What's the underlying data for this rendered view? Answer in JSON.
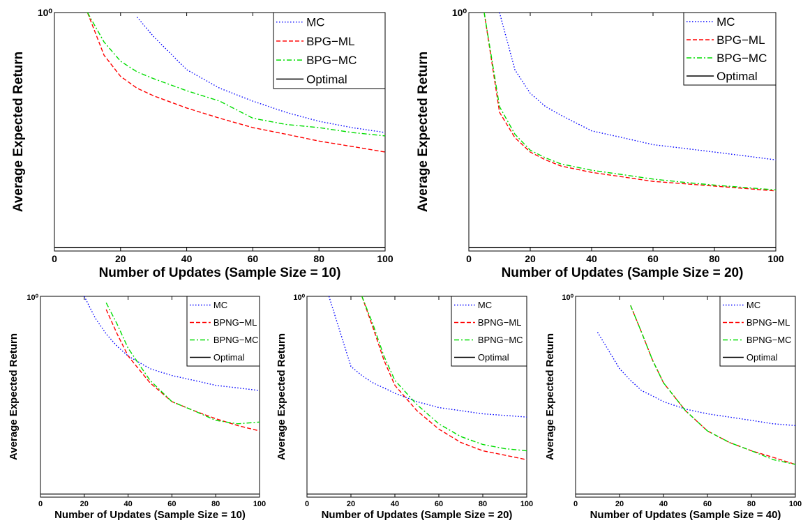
{
  "chart_data": [
    {
      "type": "line",
      "xlabel": "Number of Updates (Sample Size = 10)",
      "ylabel": "Average Expected Return",
      "x": [
        0,
        5,
        10,
        15,
        20,
        25,
        30,
        40,
        50,
        60,
        70,
        80,
        90,
        100
      ],
      "xlim": [
        0,
        100
      ],
      "xticks": [
        0,
        20,
        40,
        60,
        80,
        100
      ],
      "ylim": [
        0.2,
        1
      ],
      "yticks": [
        {
          "value": 1,
          "label": "10⁰"
        }
      ],
      "log_y": true,
      "legend": "upper right",
      "series": [
        {
          "name": "MC",
          "color": "#0000ff",
          "style": "dotted",
          "values": [
            null,
            null,
            null,
            null,
            null,
            0.97,
            0.85,
            0.68,
            0.6,
            0.55,
            0.51,
            0.48,
            0.46,
            0.445
          ]
        },
        {
          "name": "BPG−ML",
          "color": "#ff0000",
          "style": "dashed",
          "values": [
            null,
            null,
            1,
            0.75,
            0.65,
            0.6,
            0.57,
            0.525,
            0.49,
            0.46,
            0.44,
            0.42,
            0.405,
            0.39
          ]
        },
        {
          "name": "BPG−MC",
          "color": "#00dd00",
          "style": "dashdot",
          "values": [
            null,
            null,
            1,
            0.82,
            0.72,
            0.67,
            0.64,
            0.59,
            0.55,
            0.49,
            0.47,
            0.46,
            0.445,
            0.435
          ]
        },
        {
          "name": "Optimal",
          "color": "#000000",
          "style": "solid",
          "values": [
            0.205,
            0.205,
            0.205,
            0.205,
            0.205,
            0.205,
            0.205,
            0.205,
            0.205,
            0.205,
            0.205,
            0.205,
            0.205,
            0.205
          ]
        }
      ]
    },
    {
      "type": "line",
      "xlabel": "Number of Updates (Sample Size = 20)",
      "ylabel": "Average Expected Return",
      "x": [
        0,
        5,
        10,
        15,
        20,
        25,
        30,
        40,
        50,
        60,
        70,
        80,
        90,
        100
      ],
      "xlim": [
        0,
        100
      ],
      "xticks": [
        0,
        20,
        40,
        60,
        80,
        100
      ],
      "ylim": [
        0.2,
        1
      ],
      "yticks": [
        {
          "value": 1,
          "label": "10⁰"
        }
      ],
      "log_y": true,
      "legend": "upper right",
      "series": [
        {
          "name": "MC",
          "color": "#0000ff",
          "style": "dotted",
          "values": [
            null,
            null,
            1,
            0.68,
            0.58,
            0.53,
            0.5,
            0.45,
            0.43,
            0.41,
            0.4,
            0.39,
            0.38,
            0.37
          ]
        },
        {
          "name": "BPG−ML",
          "color": "#ff0000",
          "style": "dashed",
          "values": [
            null,
            1,
            0.51,
            0.43,
            0.39,
            0.37,
            0.355,
            0.34,
            0.33,
            0.32,
            0.315,
            0.31,
            0.305,
            0.3
          ]
        },
        {
          "name": "BPG−MC",
          "color": "#00dd00",
          "style": "dashdot",
          "values": [
            null,
            1,
            0.53,
            0.44,
            0.395,
            0.375,
            0.36,
            0.345,
            0.335,
            0.325,
            0.318,
            0.312,
            0.307,
            0.302
          ]
        },
        {
          "name": "Optimal",
          "color": "#000000",
          "style": "solid",
          "values": [
            0.205,
            0.205,
            0.205,
            0.205,
            0.205,
            0.205,
            0.205,
            0.205,
            0.205,
            0.205,
            0.205,
            0.205,
            0.205,
            0.205
          ]
        }
      ]
    },
    {
      "type": "line",
      "xlabel": "Number of Updates (Sample Size = 10)",
      "ylabel": "Average Expected Return",
      "x": [
        0,
        10,
        20,
        25,
        30,
        35,
        40,
        50,
        60,
        70,
        80,
        90,
        100
      ],
      "xlim": [
        0,
        100
      ],
      "xticks": [
        0,
        20,
        40,
        60,
        80,
        100
      ],
      "ylim": [
        0.2,
        1
      ],
      "yticks": [
        {
          "value": 1,
          "label": "10⁰"
        }
      ],
      "log_y": true,
      "legend": "upper right",
      "series": [
        {
          "name": "MC",
          "color": "#0000ff",
          "style": "dotted",
          "values": [
            null,
            null,
            1,
            0.84,
            0.74,
            0.67,
            0.62,
            0.56,
            0.53,
            0.51,
            0.49,
            0.48,
            0.47
          ]
        },
        {
          "name": "BPNG−ML",
          "color": "#ff0000",
          "style": "dashed",
          "values": [
            null,
            null,
            null,
            null,
            0.9,
            0.74,
            0.62,
            0.5,
            0.43,
            0.4,
            0.375,
            0.355,
            0.34
          ]
        },
        {
          "name": "BPNG−MC",
          "color": "#00dd00",
          "style": "dashdot",
          "values": [
            null,
            null,
            null,
            null,
            0.95,
            0.8,
            0.66,
            0.51,
            0.43,
            0.4,
            0.37,
            0.36,
            0.365
          ]
        },
        {
          "name": "Optimal",
          "color": "#000000",
          "style": "solid",
          "values": [
            0.205,
            0.205,
            0.205,
            0.205,
            0.205,
            0.205,
            0.205,
            0.205,
            0.205,
            0.205,
            0.205,
            0.205,
            0.205
          ]
        }
      ]
    },
    {
      "type": "line",
      "xlabel": "Number of Updates (Sample Size = 20)",
      "ylabel": "Average Expected Return",
      "x": [
        0,
        10,
        20,
        25,
        30,
        35,
        40,
        50,
        60,
        70,
        80,
        90,
        100
      ],
      "xlim": [
        0,
        100
      ],
      "xticks": [
        0,
        20,
        40,
        60,
        80,
        100
      ],
      "ylim": [
        0.2,
        1
      ],
      "yticks": [
        {
          "value": 1,
          "label": "10⁰"
        }
      ],
      "log_y": true,
      "legend": "upper right",
      "series": [
        {
          "name": "MC",
          "color": "#0000ff",
          "style": "dotted",
          "values": [
            null,
            1,
            0.57,
            0.53,
            0.5,
            0.48,
            0.46,
            0.43,
            0.41,
            0.4,
            0.39,
            0.385,
            0.38
          ]
        },
        {
          "name": "BPNG−ML",
          "color": "#ff0000",
          "style": "dashed",
          "values": [
            null,
            null,
            null,
            1,
            0.78,
            0.6,
            0.49,
            0.4,
            0.345,
            0.31,
            0.29,
            0.28,
            0.27
          ]
        },
        {
          "name": "BPNG−MC",
          "color": "#00dd00",
          "style": "dashdot",
          "values": [
            null,
            null,
            null,
            1,
            0.8,
            0.62,
            0.51,
            0.42,
            0.36,
            0.325,
            0.305,
            0.295,
            0.29
          ]
        },
        {
          "name": "Optimal",
          "color": "#000000",
          "style": "solid",
          "values": [
            0.205,
            0.205,
            0.205,
            0.205,
            0.205,
            0.205,
            0.205,
            0.205,
            0.205,
            0.205,
            0.205,
            0.205,
            0.205
          ]
        }
      ]
    },
    {
      "type": "line",
      "xlabel": "Number of Updates (Sample Size = 40)",
      "ylabel": "Average Expected Return",
      "x": [
        0,
        10,
        20,
        25,
        30,
        35,
        40,
        50,
        60,
        70,
        80,
        90,
        100
      ],
      "xlim": [
        0,
        100
      ],
      "xticks": [
        0,
        20,
        40,
        60,
        80,
        100
      ],
      "ylim": [
        0.2,
        1
      ],
      "yticks": [
        {
          "value": 1,
          "label": "10⁰"
        }
      ],
      "log_y": true,
      "legend": "upper right",
      "series": [
        {
          "name": "MC",
          "color": "#0000ff",
          "style": "dotted",
          "values": [
            null,
            0.75,
            0.56,
            0.51,
            0.47,
            0.45,
            0.43,
            0.405,
            0.39,
            0.38,
            0.37,
            0.36,
            0.355
          ]
        },
        {
          "name": "BPNG−ML",
          "color": "#ff0000",
          "style": "dashed",
          "values": [
            null,
            null,
            null,
            0.93,
            0.75,
            0.6,
            0.5,
            0.4,
            0.34,
            0.31,
            0.29,
            0.275,
            0.26
          ]
        },
        {
          "name": "BPNG−MC",
          "color": "#00dd00",
          "style": "dashdot",
          "values": [
            null,
            null,
            null,
            0.93,
            0.75,
            0.6,
            0.5,
            0.4,
            0.34,
            0.31,
            0.29,
            0.27,
            0.26
          ]
        },
        {
          "name": "Optimal",
          "color": "#000000",
          "style": "solid",
          "values": [
            0.205,
            0.205,
            0.205,
            0.205,
            0.205,
            0.205,
            0.205,
            0.205,
            0.205,
            0.205,
            0.205,
            0.205,
            0.205
          ]
        }
      ]
    }
  ]
}
